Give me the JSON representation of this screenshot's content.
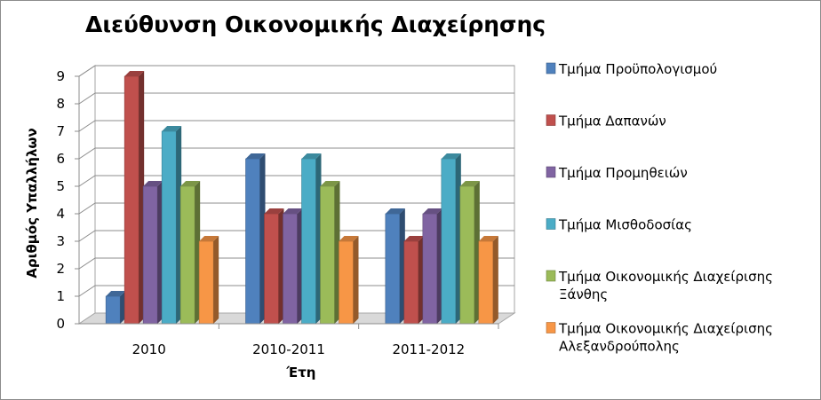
{
  "chart_data": {
    "type": "bar",
    "title": "Διεύθυνση Οικονομικής Διαχείρησης",
    "xlabel": "Έτη",
    "ylabel": "Αριθμός Υπαλλήλων",
    "categories": [
      "2010",
      "2010-2011",
      "2011-2012"
    ],
    "ylim": [
      0,
      9
    ],
    "yticks": [
      0,
      1,
      2,
      3,
      4,
      5,
      6,
      7,
      8,
      9
    ],
    "grid": true,
    "legend_position": "right",
    "series": [
      {
        "name": "Τμήμα Προϋπολογισμού",
        "values": [
          1,
          6,
          4
        ],
        "color": "#4F81BD"
      },
      {
        "name": "Τμήμα Δαπανών",
        "values": [
          9,
          4,
          3
        ],
        "color": "#C0504D"
      },
      {
        "name": "Τμήμα Προμηθειών",
        "values": [
          5,
          4,
          4
        ],
        "color": "#8064A2"
      },
      {
        "name": "Τμήμα Μισθοδοσίας",
        "values": [
          7,
          6,
          6
        ],
        "color": "#4BACC6"
      },
      {
        "name": "Τμήμα Οικονομικής Διαχείρισης Ξάνθης",
        "values": [
          5,
          5,
          5
        ],
        "color": "#9BBB59"
      },
      {
        "name": "Τμήμα Οικονομικής Διαχείρισης Αλεξανδρούπολης",
        "values": [
          3,
          3,
          3
        ],
        "color": "#F79646"
      }
    ]
  }
}
